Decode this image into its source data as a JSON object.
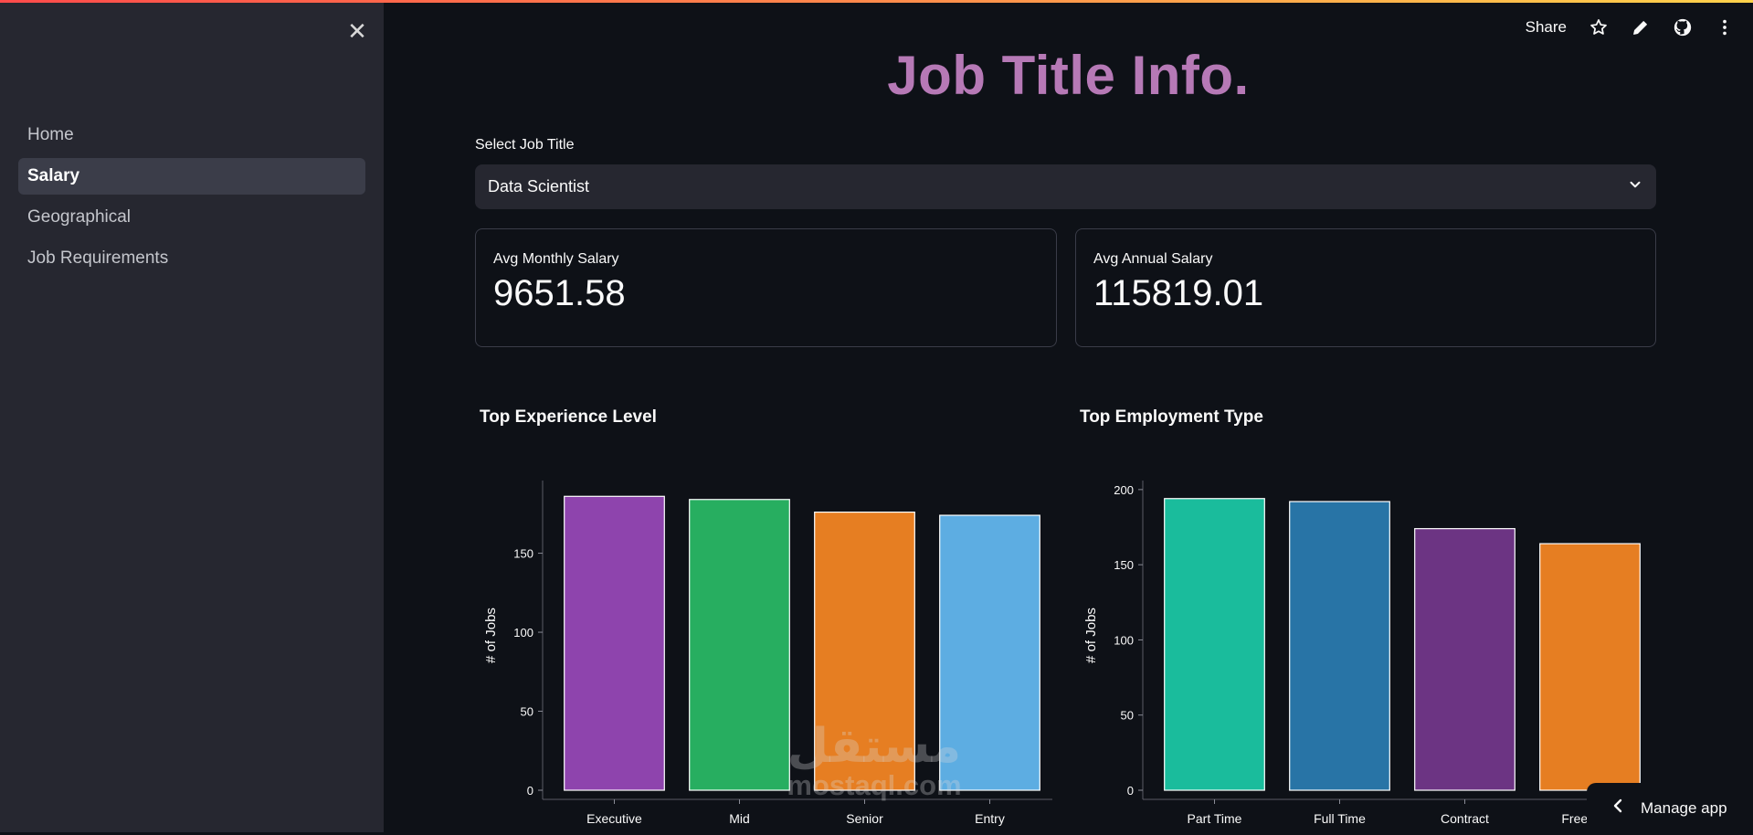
{
  "header": {
    "share_label": "Share",
    "icons": [
      "star-icon",
      "pencil-icon",
      "github-icon",
      "more-vertical-icon"
    ]
  },
  "sidebar": {
    "close_icon": "close-icon",
    "items": [
      {
        "label": "Home",
        "active": false
      },
      {
        "label": "Salary",
        "active": true
      },
      {
        "label": "Geographical",
        "active": false
      },
      {
        "label": "Job Requirements",
        "active": false
      }
    ]
  },
  "main": {
    "title": "Job Title Info.",
    "select": {
      "label": "Select Job Title",
      "value": "Data Scientist"
    },
    "metrics": [
      {
        "label": "Avg Monthly Salary",
        "value": "9651.58"
      },
      {
        "label": "Avg Annual Salary",
        "value": "115819.01"
      }
    ]
  },
  "colors": {
    "title": "#b679b6",
    "background": "#0e1117",
    "sidebar": "#262730"
  },
  "chart_data": [
    {
      "type": "bar",
      "title": "Top Experience Level",
      "xlabel": "",
      "ylabel": "# of Jobs",
      "categories": [
        "Executive",
        "Mid",
        "Senior",
        "Entry"
      ],
      "values": [
        186,
        184,
        176,
        174
      ],
      "colors": [
        "#8e44ad",
        "#27ae60",
        "#e67e22",
        "#5dade2"
      ],
      "ylim": [
        0,
        196
      ],
      "yticks": [
        0,
        50,
        100,
        150
      ],
      "grid": false
    },
    {
      "type": "bar",
      "title": "Top Employment Type",
      "xlabel": "",
      "ylabel": "# of Jobs",
      "categories": [
        "Part Time",
        "Full Time",
        "Contract",
        "Freelance"
      ],
      "values": [
        194,
        192,
        174,
        164
      ],
      "colors": [
        "#1abc9c",
        "#2874a6",
        "#6c3483",
        "#e67e22"
      ],
      "ylim": [
        0,
        206
      ],
      "yticks": [
        0,
        50,
        100,
        150,
        200
      ],
      "grid": false
    }
  ],
  "footer": {
    "manage_app_label": "Manage app"
  },
  "watermark": {
    "arabic": "مستقل",
    "latin": "mostaql.com"
  }
}
